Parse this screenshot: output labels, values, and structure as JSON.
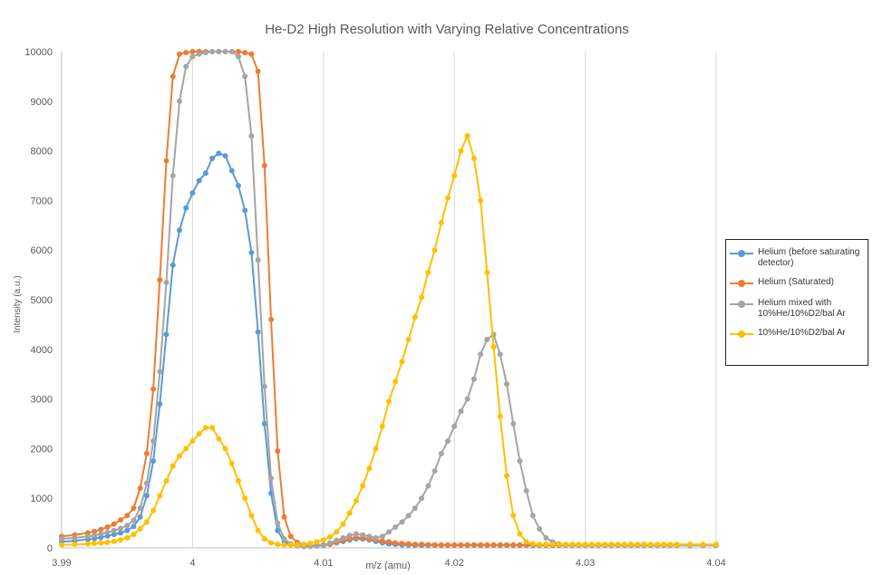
{
  "chart_data": {
    "type": "line",
    "title": "He-D2 High Resolution with Varying Relative Concentrations",
    "xlabel": "m/z (amu)",
    "ylabel": "Intensity (a.u.)",
    "xlim": [
      3.99,
      4.04
    ],
    "ylim": [
      0,
      10000
    ],
    "xticks": [
      3.99,
      4,
      4.01,
      4.02,
      4.03,
      4.04
    ],
    "xtick_labels": [
      "3.99",
      "4",
      "4.01",
      "4.02",
      "4.03",
      "4.04"
    ],
    "yticks": [
      0,
      1000,
      2000,
      3000,
      4000,
      5000,
      6000,
      7000,
      8000,
      9000,
      10000
    ],
    "ytick_labels": [
      "0",
      "1000",
      "2000",
      "3000",
      "4000",
      "5000",
      "6000",
      "7000",
      "8000",
      "9000",
      "10000"
    ],
    "grid": "vertical",
    "legend_position": "right",
    "x": [
      3.99,
      3.991,
      3.992,
      3.9925,
      3.993,
      3.9935,
      3.994,
      3.9945,
      3.995,
      3.9955,
      3.996,
      3.9965,
      3.997,
      3.9975,
      3.998,
      3.9985,
      3.999,
      3.9995,
      4.0,
      4.0005,
      4.001,
      4.0015,
      4.002,
      4.0025,
      4.003,
      4.0035,
      4.004,
      4.0045,
      4.005,
      4.0055,
      4.006,
      4.0065,
      4.007,
      4.0075,
      4.008,
      4.0085,
      4.009,
      4.0095,
      4.01,
      4.0105,
      4.011,
      4.0115,
      4.012,
      4.0125,
      4.013,
      4.0135,
      4.014,
      4.0145,
      4.015,
      4.0155,
      4.016,
      4.0165,
      4.017,
      4.0175,
      4.018,
      4.0185,
      4.019,
      4.0195,
      4.02,
      4.0205,
      4.021,
      4.0215,
      4.022,
      4.0225,
      4.023,
      4.0235,
      4.024,
      4.0245,
      4.025,
      4.0255,
      4.026,
      4.0265,
      4.027,
      4.0275,
      4.028,
      4.0285,
      4.029,
      4.0295,
      4.03,
      4.0305,
      4.031,
      4.0315,
      4.032,
      4.0325,
      4.033,
      4.0335,
      4.034,
      4.0345,
      4.035,
      4.0355,
      4.036,
      4.0365,
      4.037,
      4.038,
      4.039,
      4.04
    ],
    "series": [
      {
        "name": "Helium (before saturating detector)",
        "color": "#5b9bd5",
        "values": [
          120,
          140,
          170,
          190,
          210,
          240,
          270,
          300,
          350,
          430,
          620,
          1050,
          1750,
          2900,
          4300,
          5700,
          6400,
          6850,
          7150,
          7400,
          7550,
          7850,
          7950,
          7900,
          7600,
          7300,
          6800,
          5950,
          4350,
          2500,
          1100,
          350,
          120,
          60,
          40,
          30,
          30,
          40,
          50,
          70,
          100,
          130,
          160,
          180,
          180,
          160,
          130,
          100,
          80,
          70,
          60,
          55,
          50,
          50,
          50,
          50,
          50,
          50,
          50,
          50,
          50,
          50,
          50,
          50,
          50,
          50,
          50,
          50,
          50,
          50,
          50,
          50,
          50,
          50,
          50,
          50,
          50,
          50,
          50,
          50,
          50,
          50,
          50,
          50,
          50,
          50,
          50,
          50,
          50,
          50,
          50,
          50,
          50,
          50,
          50,
          50
        ]
      },
      {
        "name": "Helium (Saturated)",
        "color": "#ed7d31",
        "values": [
          230,
          260,
          300,
          330,
          370,
          420,
          480,
          560,
          650,
          800,
          1200,
          1900,
          3200,
          5400,
          7800,
          9500,
          9950,
          9980,
          10000,
          10000,
          10000,
          10000,
          10000,
          10000,
          10000,
          10000,
          9980,
          9950,
          9600,
          7700,
          4600,
          1950,
          620,
          230,
          110,
          60,
          50,
          50,
          60,
          80,
          110,
          150,
          190,
          210,
          200,
          180,
          160,
          140,
          120,
          100,
          90,
          80,
          70,
          70,
          65,
          60,
          60,
          60,
          60,
          60,
          60,
          60,
          60,
          60,
          60,
          60,
          60,
          60,
          60,
          60,
          60,
          60,
          60,
          60,
          60,
          60,
          60,
          60,
          60,
          60,
          60,
          60,
          60,
          60,
          60,
          60,
          60,
          60,
          60,
          60,
          60,
          60,
          60,
          60,
          60,
          60
        ]
      },
      {
        "name": "Helium mixed with 10%He/10%D2/bal Ar",
        "color": "#a5a5a5",
        "values": [
          180,
          200,
          230,
          250,
          280,
          310,
          350,
          390,
          450,
          550,
          800,
          1300,
          2150,
          3550,
          5350,
          7500,
          9000,
          9700,
          9900,
          9950,
          9980,
          10000,
          10000,
          10000,
          10000,
          9900,
          9500,
          8300,
          5800,
          3250,
          1400,
          500,
          180,
          80,
          40,
          30,
          30,
          40,
          60,
          100,
          150,
          200,
          250,
          280,
          260,
          230,
          200,
          230,
          320,
          420,
          520,
          650,
          800,
          1000,
          1250,
          1550,
          1900,
          2150,
          2450,
          2750,
          3000,
          3400,
          3900,
          4200,
          4300,
          3900,
          3300,
          2500,
          1750,
          1150,
          650,
          380,
          200,
          120,
          80,
          60,
          50,
          50,
          50,
          50,
          50,
          50,
          50,
          50,
          50,
          50,
          50,
          50,
          50,
          50,
          50,
          50,
          50,
          50,
          50,
          50
        ]
      },
      {
        "name": "10%He/10%D2/bal Ar",
        "color": "#ffc000",
        "values": [
          60,
          70,
          80,
          90,
          100,
          110,
          130,
          160,
          200,
          270,
          380,
          520,
          750,
          1050,
          1350,
          1650,
          1850,
          2000,
          2150,
          2300,
          2420,
          2420,
          2200,
          2000,
          1700,
          1350,
          1000,
          650,
          350,
          180,
          100,
          70,
          60,
          60,
          60,
          70,
          90,
          120,
          160,
          220,
          320,
          480,
          700,
          950,
          1250,
          1600,
          2000,
          2450,
          2950,
          3350,
          3750,
          4200,
          4650,
          5050,
          5550,
          6000,
          6550,
          7050,
          7500,
          8000,
          8300,
          7850,
          7000,
          5550,
          4050,
          2650,
          1450,
          650,
          280,
          120,
          80,
          70,
          70,
          70,
          70,
          70,
          70,
          70,
          70,
          70,
          70,
          70,
          70,
          70,
          70,
          70,
          70,
          70,
          70,
          70,
          70,
          70,
          70,
          70,
          70,
          70
        ]
      }
    ]
  }
}
